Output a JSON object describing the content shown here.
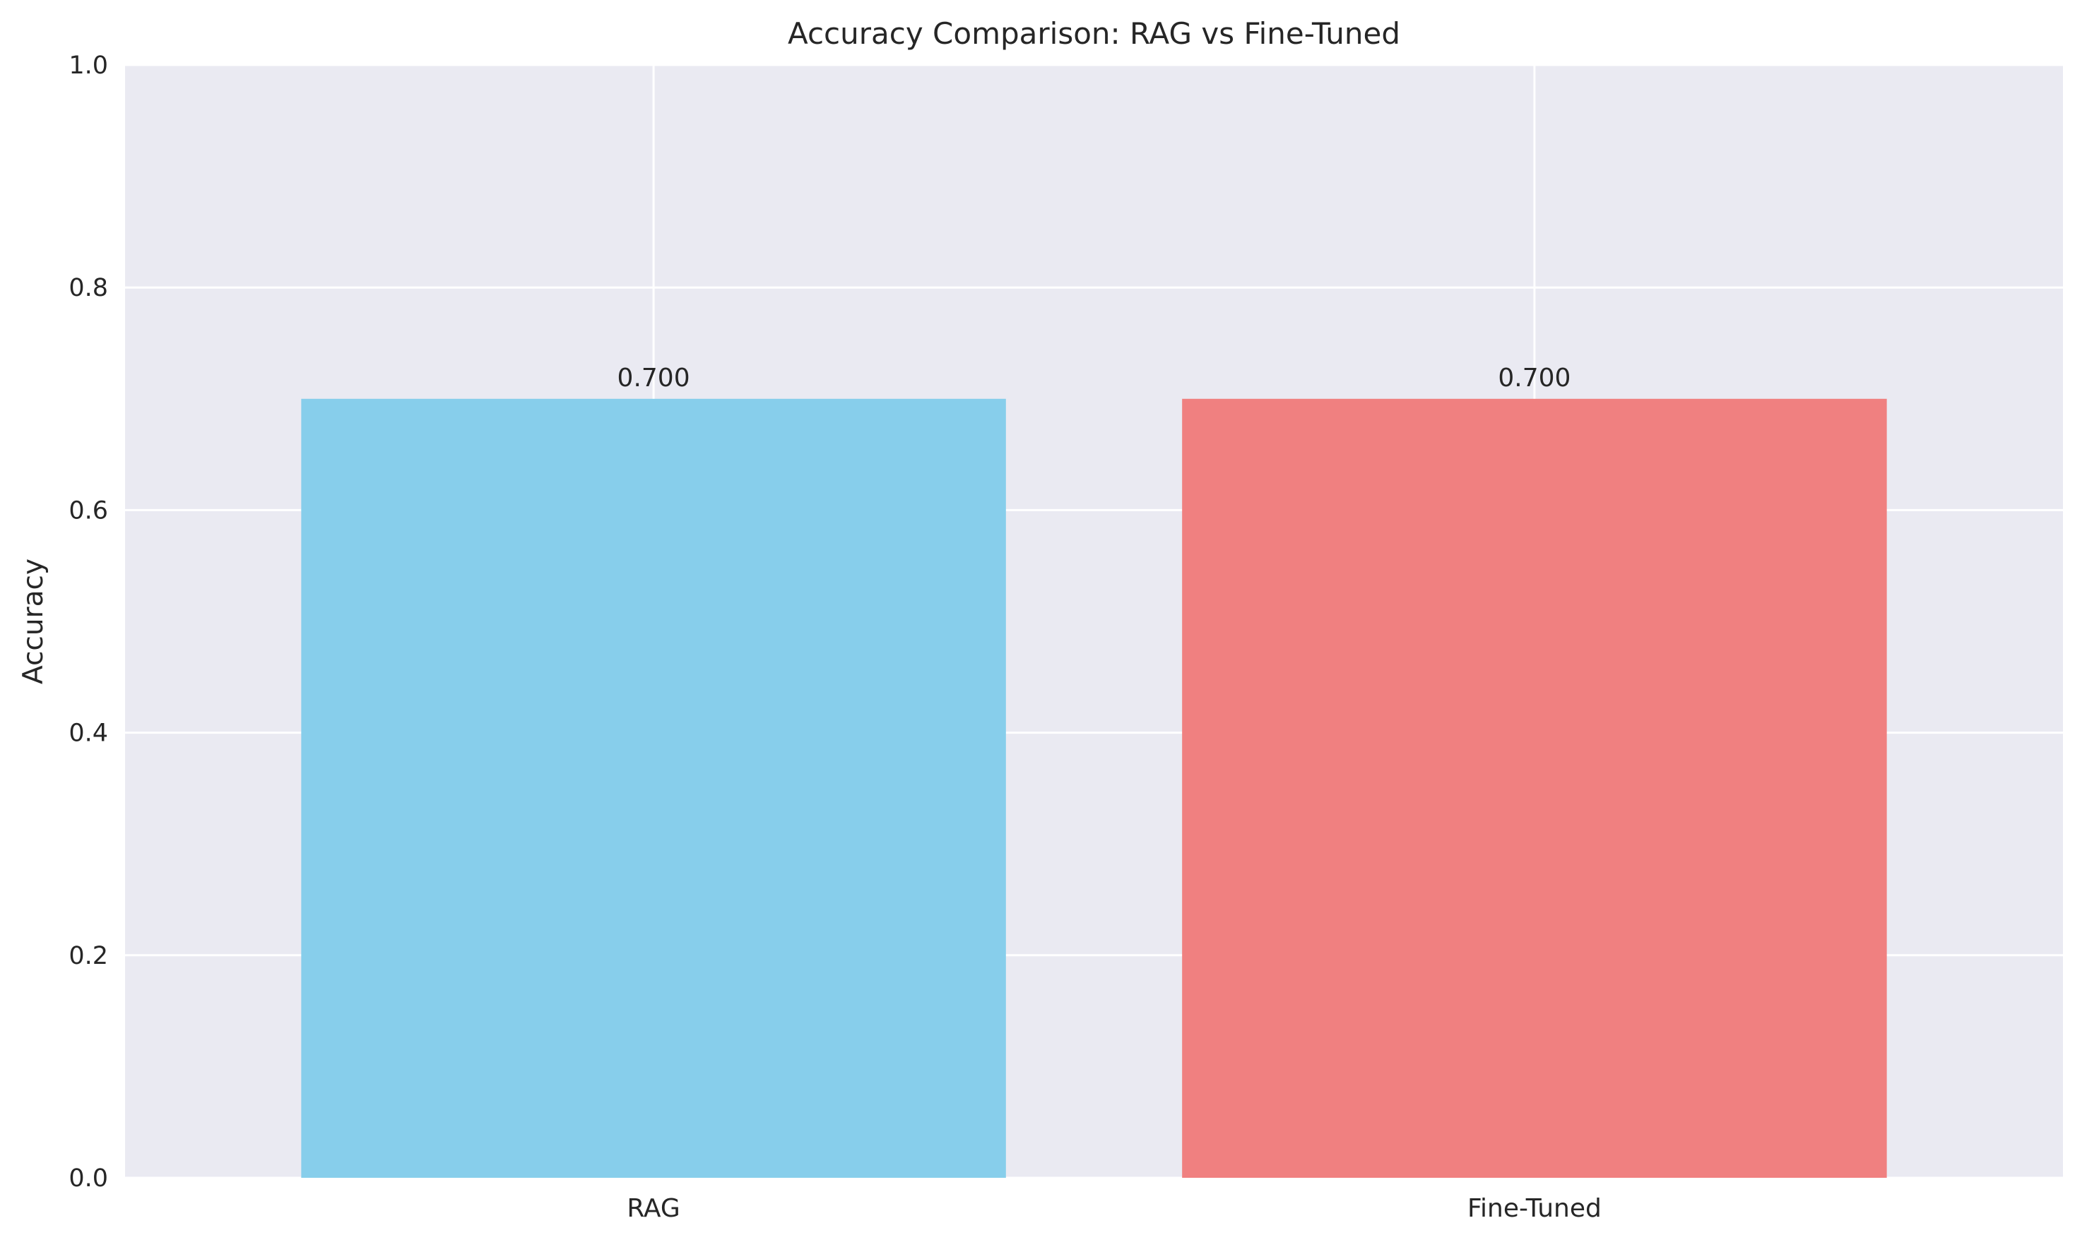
{
  "chart_data": {
    "type": "bar",
    "title": "Accuracy Comparison: RAG vs Fine-Tuned",
    "xlabel": "",
    "ylabel": "Accuracy",
    "categories": [
      "RAG",
      "Fine-Tuned"
    ],
    "values": [
      0.7,
      0.7
    ],
    "value_labels": [
      "0.700",
      "0.700"
    ],
    "colors": [
      "#87CEEB",
      "#F08080"
    ],
    "ylim": [
      0,
      1.0
    ],
    "yticks": [
      0.0,
      0.2,
      0.4,
      0.6,
      0.8,
      1.0
    ],
    "ytick_labels": [
      "0.0",
      "0.2",
      "0.4",
      "0.6",
      "0.8",
      "1.0"
    ],
    "grid": true,
    "plot_background": "#EAEAF2",
    "grid_color": "#FFFFFF"
  }
}
